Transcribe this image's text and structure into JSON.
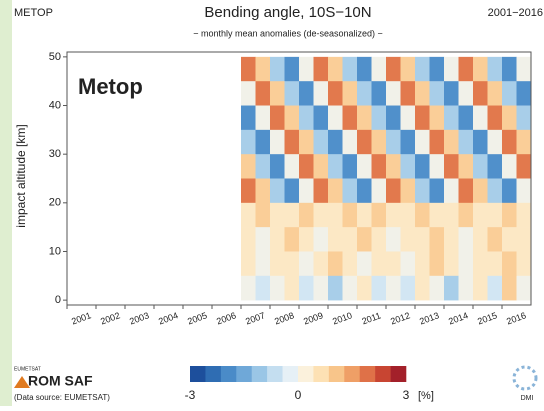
{
  "chart_data": {
    "type": "heatmap",
    "header_left": "METOP",
    "title": "Bending angle, 10S−10N",
    "header_right": "2001−2016",
    "subtitle": "− monthly mean anomalies (de-seasonalized) −",
    "annotation": "Metop",
    "y_label": "impact altitude [km]",
    "xlim": [
      2001,
      2017
    ],
    "xticks": [
      2001,
      2002,
      2003,
      2004,
      2005,
      2006,
      2007,
      2008,
      2009,
      2010,
      2011,
      2012,
      2013,
      2014,
      2015,
      2016
    ],
    "ylim": [
      -1,
      51
    ],
    "yticks": [
      0,
      10,
      20,
      30,
      40,
      50
    ],
    "x_bins": [
      2007,
      2007.5,
      2008,
      2008.5,
      2009,
      2009.5,
      2010,
      2010.5,
      2011,
      2011.5,
      2012,
      2012.5,
      2013,
      2013.5,
      2014,
      2014.5,
      2015,
      2015.5,
      2016,
      2016.5,
      2017
    ],
    "y_bins": [
      50,
      45,
      40,
      35,
      30,
      25,
      20,
      15,
      10,
      5,
      0
    ],
    "values": [
      [
        2,
        1,
        -1,
        -2,
        0,
        2,
        1,
        -1,
        -2,
        0,
        2,
        1,
        -1,
        -2,
        0,
        2,
        1,
        -1,
        -2,
        0
      ],
      [
        0,
        2,
        1,
        -1,
        -2,
        0,
        2,
        1,
        -1,
        -2,
        0,
        2,
        1,
        -1,
        -2,
        0,
        2,
        1,
        -1,
        -2
      ],
      [
        -2,
        0,
        2,
        1,
        -1,
        -2,
        0,
        2,
        1,
        -1,
        -2,
        0,
        2,
        1,
        -1,
        -2,
        0,
        2,
        1,
        -1
      ],
      [
        -1,
        -2,
        0,
        2,
        1,
        -1,
        -2,
        0,
        2,
        1,
        -1,
        -2,
        0,
        2,
        1,
        -1,
        -2,
        0,
        2,
        1
      ],
      [
        1,
        -1,
        -2,
        0,
        2,
        1,
        -1,
        -2,
        0,
        2,
        1,
        -1,
        -2,
        0,
        2,
        1,
        -1,
        -2,
        0,
        2
      ],
      [
        2,
        1,
        -1,
        -2,
        0,
        2,
        1,
        -1,
        -2,
        0,
        2,
        1,
        -1,
        -2,
        0,
        2,
        1,
        -1,
        -2,
        0
      ],
      [
        0.5,
        1,
        0.5,
        0.5,
        1,
        0.5,
        0.5,
        1,
        0.5,
        1,
        0.5,
        0.5,
        1,
        0.5,
        0.5,
        1,
        0.5,
        0.5,
        1,
        0.5
      ],
      [
        0.5,
        0,
        0.5,
        1,
        0.5,
        0,
        0.5,
        0.5,
        1,
        0.5,
        0,
        0.5,
        0.5,
        1,
        0.5,
        0,
        0.5,
        1,
        0.5,
        0.5
      ],
      [
        0.5,
        0,
        0.5,
        0.5,
        0,
        0.5,
        1,
        0.5,
        0,
        0.5,
        0.5,
        0,
        0.5,
        1,
        0.5,
        0,
        0.5,
        0.5,
        1,
        0.5
      ],
      [
        0,
        -0.5,
        0,
        0.5,
        -0.5,
        0,
        -1,
        0,
        0.5,
        -0.5,
        0,
        -0.5,
        0.5,
        0,
        -1,
        0,
        0.5,
        -0.5,
        1,
        0
      ]
    ],
    "clim": [
      -3,
      3
    ],
    "colormap": [
      "#1d4f9c",
      "#2f6db3",
      "#4a8bc8",
      "#6fa8d8",
      "#9ac6e6",
      "#c4def0",
      "#e6f0f6",
      "#fbf1dc",
      "#fde1b4",
      "#f8c58a",
      "#ef9f66",
      "#df7148",
      "#c84532",
      "#a3202a"
    ],
    "colorbar_ticks": [
      -3,
      0,
      3
    ],
    "colorbar_unit": "[%]",
    "logos": [
      "EUMETSAT",
      "ROM SAF",
      "(Data source: EUMETSAT)",
      "DMI"
    ]
  }
}
